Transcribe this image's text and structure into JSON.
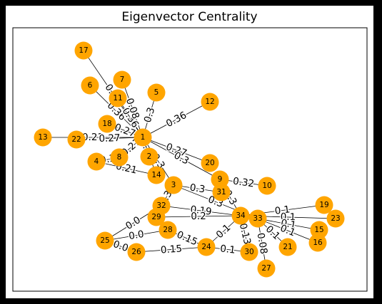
{
  "figure": {
    "title": "Eigenvector Centrality",
    "node_color": "#ffa500",
    "background": "#ffffff",
    "frame_color": "#000000"
  },
  "nodes": [
    "17",
    "7",
    "5",
    "6",
    "11",
    "12",
    "18",
    "1",
    "13",
    "22",
    "8",
    "2",
    "4",
    "20",
    "14",
    "9",
    "3",
    "31",
    "10",
    "19",
    "32",
    "34",
    "33",
    "23",
    "29",
    "28",
    "15",
    "25",
    "16",
    "24",
    "21",
    "26",
    "30",
    "27"
  ],
  "edges": [
    {
      "source": "17",
      "target": "1",
      "label": "0.08"
    },
    {
      "source": "6",
      "target": "1",
      "label": "0.36"
    },
    {
      "source": "11",
      "target": "1",
      "label": "0.36"
    },
    {
      "source": "7",
      "target": "1",
      "label": "0.08"
    },
    {
      "source": "5",
      "target": "1",
      "label": "0.3"
    },
    {
      "source": "12",
      "target": "1",
      "label": "0.36"
    },
    {
      "source": "18",
      "target": "1",
      "label": "0.27"
    },
    {
      "source": "13",
      "target": "1",
      "label": "0.21"
    },
    {
      "source": "22",
      "target": "1",
      "label": "0.27"
    },
    {
      "source": "1",
      "target": "2",
      "label": "0.4"
    },
    {
      "source": "1",
      "target": "8",
      "label": "0.27"
    },
    {
      "source": "1",
      "target": "20",
      "label": "0.27"
    },
    {
      "source": "1",
      "target": "9",
      "label": "0.3"
    },
    {
      "source": "1",
      "target": "14",
      "label": "0.3"
    },
    {
      "source": "1",
      "target": "3",
      "label": "0.3"
    },
    {
      "source": "4",
      "target": "14",
      "label": "0.21"
    },
    {
      "source": "4",
      "target": "8",
      "label": "0.3"
    },
    {
      "source": "3",
      "target": "31",
      "label": "0.3"
    },
    {
      "source": "9",
      "target": "10",
      "label": "0.32"
    },
    {
      "source": "3",
      "target": "32",
      "label": "0.32"
    },
    {
      "source": "3",
      "target": "33",
      "label": "0.3"
    },
    {
      "source": "9",
      "target": "34",
      "label": "0.3"
    },
    {
      "source": "32",
      "target": "34",
      "label": "0.19"
    },
    {
      "source": "34",
      "target": "19",
      "label": "0.1"
    },
    {
      "source": "34",
      "target": "23",
      "label": "0.1"
    },
    {
      "source": "33",
      "target": "15",
      "label": "0.1"
    },
    {
      "source": "33",
      "target": "16",
      "label": "0.1"
    },
    {
      "source": "33",
      "target": "21",
      "label": "0.1"
    },
    {
      "source": "34",
      "target": "30",
      "label": "0.13"
    },
    {
      "source": "33",
      "target": "27",
      "label": "0.08"
    },
    {
      "source": "24",
      "target": "34",
      "label": "0.1"
    },
    {
      "source": "28",
      "target": "24",
      "label": "0.15"
    },
    {
      "source": "26",
      "target": "24",
      "label": "0.15"
    },
    {
      "source": "24",
      "target": "30",
      "label": "0.1"
    },
    {
      "source": "25",
      "target": "28",
      "label": "0.0"
    },
    {
      "source": "25",
      "target": "32",
      "label": "0.0"
    },
    {
      "source": "25",
      "target": "26",
      "label": "0.0"
    },
    {
      "source": "29",
      "target": "32",
      "label": "0.3"
    },
    {
      "source": "29",
      "target": "34",
      "label": "0.2"
    }
  ]
}
